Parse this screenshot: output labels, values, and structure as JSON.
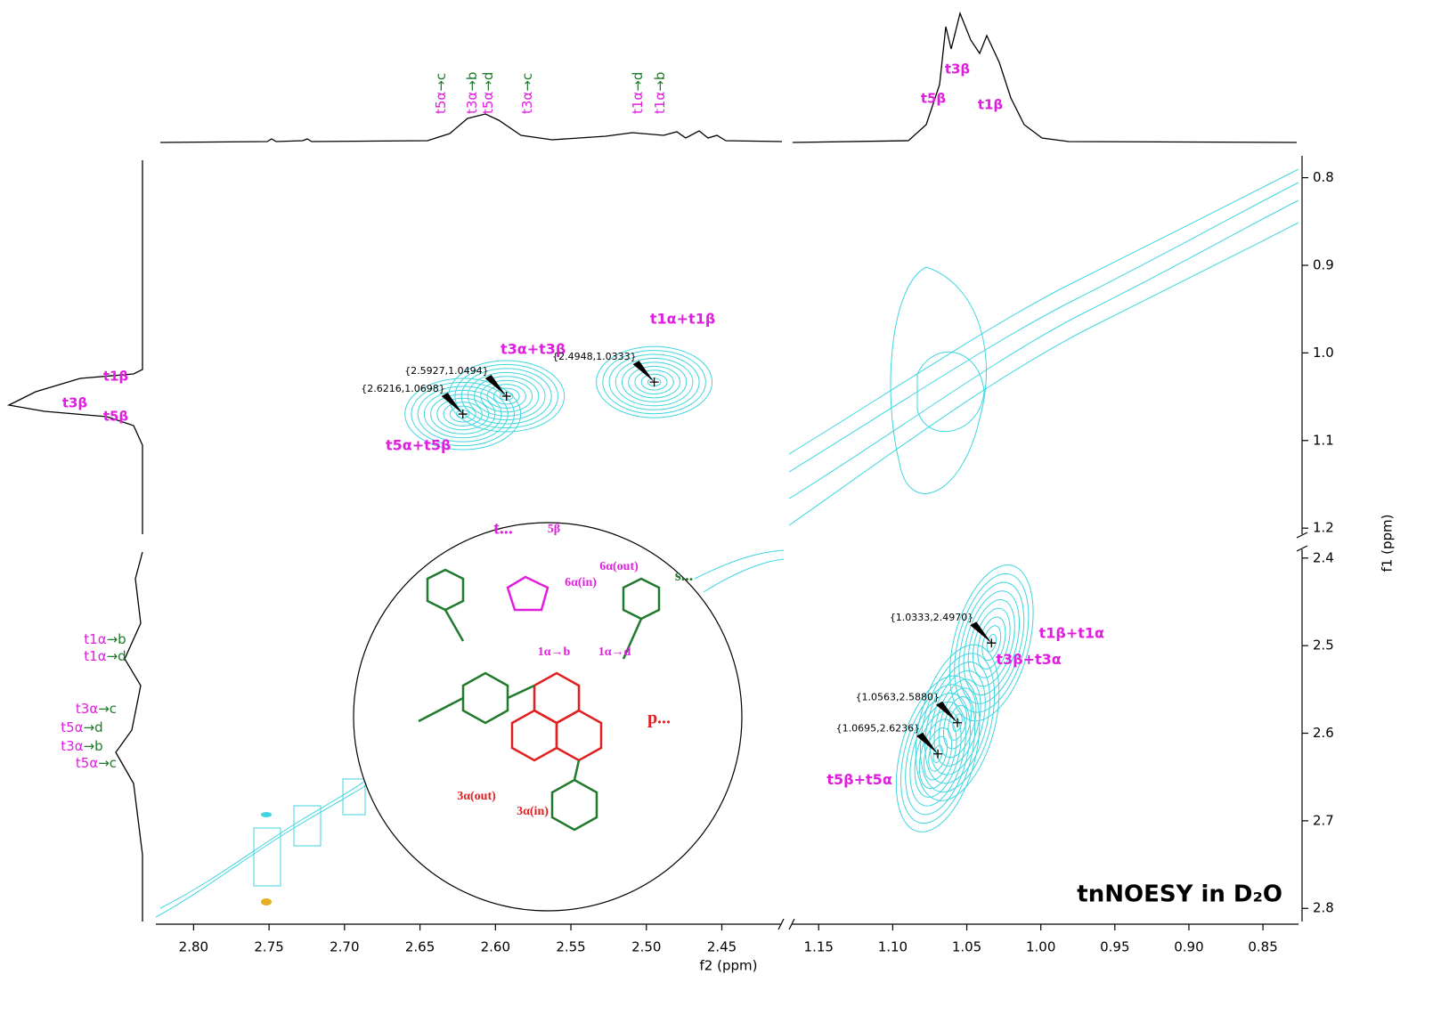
{
  "chart_data": {
    "type": "nmr-2d",
    "title": "tnNOESY in D₂O",
    "x_label": "f2 (ppm)",
    "y_label": "f1 (ppm)",
    "contour_color": "#3fd6e0",
    "label_color": "#e01ee0",
    "assign_color": "#1f7a2c",
    "x_axes": [
      {
        "xlim": [
          2.825,
          2.409
        ],
        "xticks": [
          {
            "value": 2.8,
            "label": "2.80"
          },
          2.75,
          {
            "value": 2.7,
            "label": "2.70"
          },
          2.65,
          {
            "value": 2.6,
            "label": "2.60"
          },
          2.55,
          {
            "value": 2.5,
            "label": "2.50"
          },
          2.45
        ]
      },
      {
        "xlim": [
          1.17,
          0.826
        ],
        "xticks": [
          1.15,
          {
            "value": 1.1,
            "label": "1.10"
          },
          1.05,
          {
            "value": 1.0,
            "label": "1.00"
          },
          0.95,
          {
            "value": 0.9,
            "label": "0.90"
          },
          0.85
        ]
      }
    ],
    "y_axes": [
      {
        "ylim": [
          0.775,
          1.21
        ],
        "yticks": [
          0.8,
          0.9,
          {
            "value": 1.0,
            "label": "1.0"
          },
          1.1,
          1.2
        ]
      },
      {
        "ylim": [
          2.387,
          2.815
        ],
        "yticks": [
          2.4,
          2.5,
          2.6,
          2.7,
          2.8
        ]
      }
    ],
    "upper_left_peaks": [
      {
        "x": 2.6216,
        "y": 1.0698,
        "coord_label": "{2.6216,1.0698}",
        "label": "t5α+t5β"
      },
      {
        "x": 2.5927,
        "y": 1.0494,
        "coord_label": "{2.5927,1.0494}",
        "label": "t3α+t3β"
      },
      {
        "x": 2.4948,
        "y": 1.0333,
        "coord_label": "{2.4948,1.0333}",
        "label": "t1α+t1β"
      }
    ],
    "lower_right_peaks": [
      {
        "x": 1.0333,
        "y": 2.497,
        "coord_label": "{1.0333,2.4970}",
        "label": "t1β+t1α"
      },
      {
        "x": 1.0563,
        "y": 2.588,
        "coord_label": "{1.0563,2.5880}",
        "label": "t3β+t3α"
      },
      {
        "x": 1.0695,
        "y": 2.6236,
        "coord_label": "{1.0695,2.6236}",
        "label": "t5β+t5α"
      }
    ],
    "top_projection_labels": [
      {
        "from": "t5α",
        "to": "→c"
      },
      {
        "from": "t3α",
        "to": "→b"
      },
      {
        "from": "t5α",
        "to": "→d"
      },
      {
        "from": "t3α",
        "to": "→c"
      },
      {
        "from": "t1α",
        "to": "→d"
      },
      {
        "from": "t1α",
        "to": "→b"
      }
    ],
    "top_projection_peaks": [
      "t3β",
      "t5β",
      "t1β"
    ],
    "left_projection_peaks": [
      "t1β",
      "t3β",
      "t5β"
    ],
    "left_projection_labels": [
      {
        "from": "t1α",
        "to": "→b"
      },
      {
        "from": "t1α",
        "to": "→d"
      },
      {
        "from": "t3α",
        "to": "→c"
      },
      {
        "from": "t5α",
        "to": "→d"
      },
      {
        "from": "t3α",
        "to": "→b"
      },
      {
        "from": "t5α",
        "to": "→c"
      }
    ],
    "structure_labels": [
      {
        "text": "t...",
        "color": "#e01ee0"
      },
      {
        "text": "s...",
        "color": "#1f7a2c"
      },
      {
        "text": "p...",
        "color": "#e02020"
      },
      {
        "text": "1α→b",
        "color": "#e01ee0"
      },
      {
        "text": "1α→d",
        "color": "#e01ee0"
      },
      {
        "text": "6α(in)",
        "color": "#e01ee0"
      },
      {
        "text": "6α(out)",
        "color": "#e01ee0"
      },
      {
        "text": "3α(out)",
        "color": "#e02020"
      },
      {
        "text": "3α(in)",
        "color": "#e02020"
      },
      {
        "text": "5β",
        "color": "#e01ee0"
      }
    ]
  }
}
